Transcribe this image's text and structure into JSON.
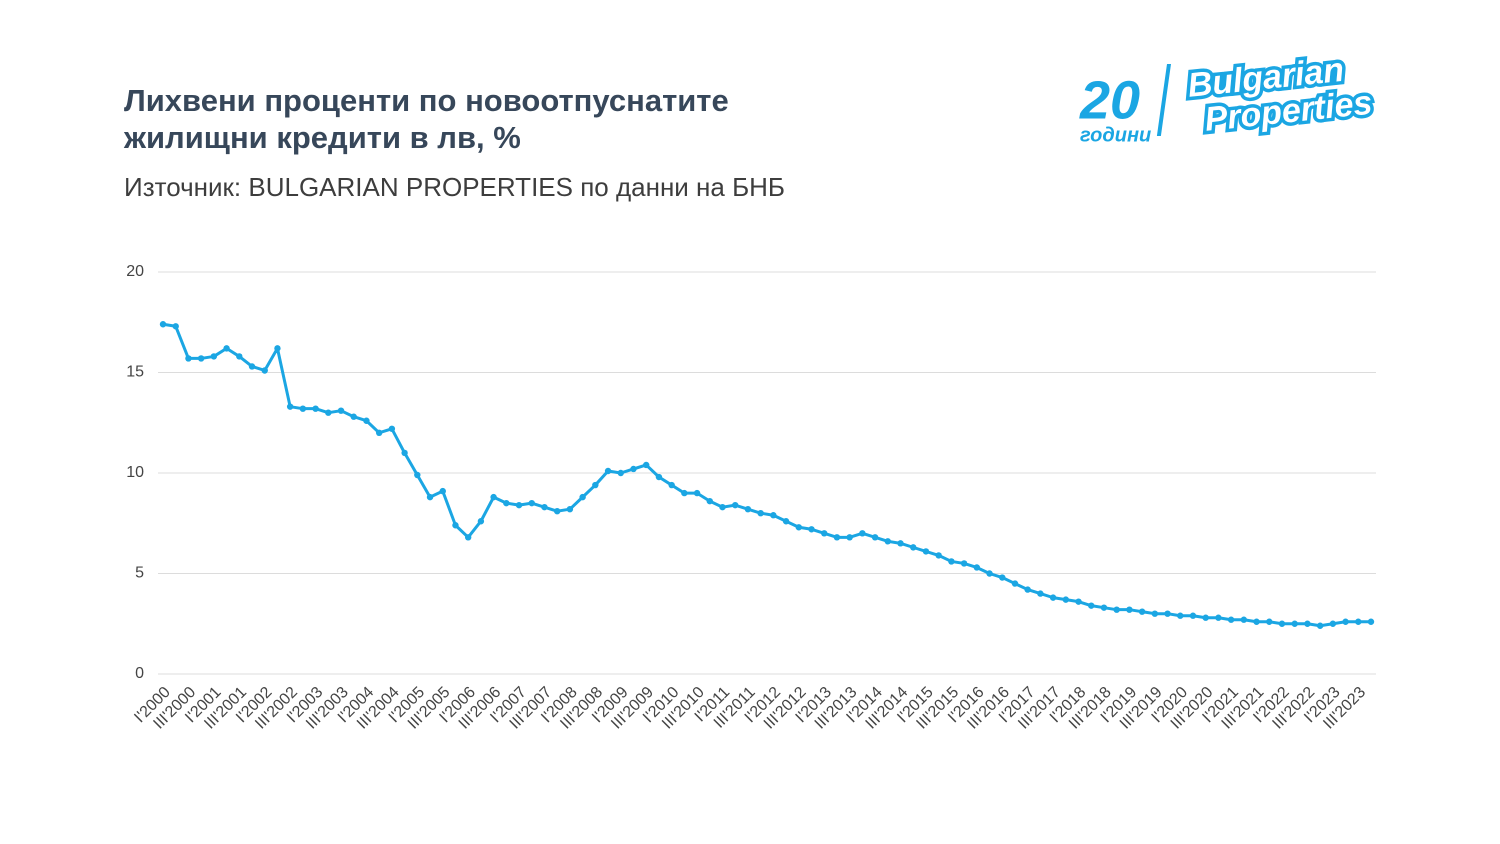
{
  "logo": {
    "number": "20",
    "years": "години",
    "line1": "Bulgarian",
    "line2": "Properties"
  },
  "chart_data": {
    "type": "line",
    "title": "Лихвени проценти по новоотпуснатите жилищни кредити в лв, %",
    "subtitle": "Източник: BULGARIAN PROPERTIES по данни на БНБ",
    "color": "#1ba6e3",
    "grid": true,
    "ylim": [
      0,
      20
    ],
    "yticks": [
      0,
      5,
      10,
      15,
      20
    ],
    "categories": [
      "I'2000",
      null,
      "III'2000",
      null,
      "I'2001",
      null,
      "III'2001",
      null,
      "I'2002",
      null,
      "III'2002",
      null,
      "I'2003",
      null,
      "III'2003",
      null,
      "I'2004",
      null,
      "III'2004",
      null,
      "I'2005",
      null,
      "III'2005",
      null,
      "I'2006",
      null,
      "III'2006",
      null,
      "I'2007",
      null,
      "III'2007",
      null,
      "I'2008",
      null,
      "III'2008",
      null,
      "I'2009",
      null,
      "III'2009",
      null,
      "I'2010",
      null,
      "III'2010",
      null,
      "I'2011",
      null,
      "III'2011",
      null,
      "I'2012",
      null,
      "III'2012",
      null,
      "I'2013",
      null,
      "III'2013",
      null,
      "I'2014",
      null,
      "III'2014",
      null,
      "I'2015",
      null,
      "III'2015",
      null,
      "I'2016",
      null,
      "III'2016",
      null,
      "I'2017",
      null,
      "III'2017",
      null,
      "I'2018",
      null,
      "III'2018",
      null,
      "I'2019",
      null,
      "III'2019",
      null,
      "I'2020",
      null,
      "III'2020",
      null,
      "I'2021",
      null,
      "III'2021",
      null,
      "I'2022",
      null,
      "III'2022",
      null,
      "I'2023",
      null,
      "III'2023",
      null
    ],
    "values": [
      17.4,
      17.3,
      15.7,
      15.7,
      15.8,
      16.2,
      15.8,
      15.3,
      15.1,
      16.2,
      13.3,
      13.2,
      13.2,
      13.0,
      13.1,
      12.8,
      12.6,
      12.0,
      12.2,
      11.0,
      9.9,
      8.8,
      9.1,
      7.4,
      6.8,
      7.6,
      8.8,
      8.5,
      8.4,
      8.5,
      8.3,
      8.1,
      8.2,
      8.8,
      9.4,
      10.1,
      10.0,
      10.2,
      10.4,
      9.8,
      9.4,
      9.0,
      9.0,
      8.6,
      8.3,
      8.4,
      8.2,
      8.0,
      7.9,
      7.6,
      7.3,
      7.2,
      7.0,
      6.8,
      6.8,
      7.0,
      6.8,
      6.6,
      6.5,
      6.3,
      6.1,
      5.9,
      5.6,
      5.5,
      5.3,
      5.0,
      4.8,
      4.5,
      4.2,
      4.0,
      3.8,
      3.7,
      3.6,
      3.4,
      3.3,
      3.2,
      3.2,
      3.1,
      3.0,
      3.0,
      2.9,
      2.9,
      2.8,
      2.8,
      2.7,
      2.7,
      2.6,
      2.6,
      2.5,
      2.5,
      2.5,
      2.4,
      2.5,
      2.6,
      2.6,
      2.6
    ]
  }
}
